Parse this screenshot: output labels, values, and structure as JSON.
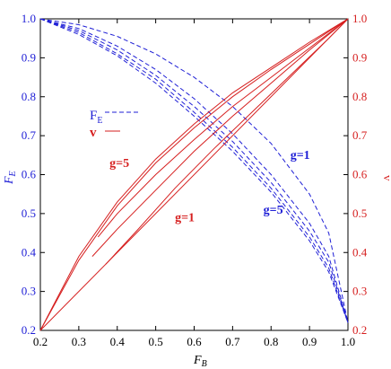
{
  "chart_data": {
    "type": "line",
    "xlabel": "F",
    "xlabel_sub": "B",
    "ylabel_left": "F",
    "ylabel_left_sub": "E",
    "ylabel_right": "v",
    "xlim": [
      0.2,
      1.0
    ],
    "ylim": [
      0.2,
      1.0
    ],
    "x_ticks": [
      "0.2",
      "0.3",
      "0.4",
      "0.5",
      "0.6",
      "0.7",
      "0.8",
      "0.9",
      "1.0"
    ],
    "y_ticks": [
      "0.2",
      "0.3",
      "0.4",
      "0.5",
      "0.6",
      "0.7",
      "0.8",
      "0.9",
      "1.0"
    ],
    "colors": {
      "fe": "#1f1fd6",
      "v": "#d61f1f",
      "axis": "#000000"
    },
    "legend": [
      {
        "label": "F",
        "sub": "E",
        "style": "dashed",
        "color": "#1f1fd6"
      },
      {
        "label": "v",
        "sub": "",
        "style": "solid",
        "color": "#d61f1f"
      }
    ],
    "annotations": [
      {
        "text": "g=5",
        "x": 0.38,
        "y": 0.62,
        "color": "#d61f1f"
      },
      {
        "text": "g=1",
        "x": 0.55,
        "y": 0.48,
        "color": "#d61f1f"
      },
      {
        "text": "g=1",
        "x": 0.85,
        "y": 0.64,
        "color": "#1f1fd6"
      },
      {
        "text": "g=5",
        "x": 0.78,
        "y": 0.5,
        "color": "#1f1fd6"
      }
    ],
    "series": [
      {
        "group": "FE",
        "style": "dashed",
        "x": [
          0.2,
          0.3,
          0.4,
          0.5,
          0.6,
          0.7,
          0.8,
          0.9,
          0.95,
          1.0
        ],
        "y": [
          1.0,
          0.985,
          0.955,
          0.91,
          0.85,
          0.775,
          0.68,
          0.55,
          0.45,
          0.22
        ]
      },
      {
        "group": "FE",
        "style": "dashed",
        "x": [
          0.2,
          0.3,
          0.4,
          0.5,
          0.6,
          0.7,
          0.8,
          0.9,
          0.95,
          1.0
        ],
        "y": [
          1.0,
          0.975,
          0.93,
          0.87,
          0.795,
          0.705,
          0.6,
          0.475,
          0.39,
          0.22
        ]
      },
      {
        "group": "FE",
        "style": "dashed",
        "x": [
          0.2,
          0.3,
          0.4,
          0.5,
          0.6,
          0.7,
          0.8,
          0.9,
          0.95,
          1.0
        ],
        "y": [
          1.0,
          0.97,
          0.92,
          0.855,
          0.775,
          0.685,
          0.58,
          0.455,
          0.375,
          0.22
        ]
      },
      {
        "group": "FE",
        "style": "dashed",
        "x": [
          0.2,
          0.3,
          0.4,
          0.5,
          0.6,
          0.7,
          0.8,
          0.9,
          0.95,
          1.0
        ],
        "y": [
          1.0,
          0.965,
          0.91,
          0.845,
          0.76,
          0.67,
          0.565,
          0.44,
          0.36,
          0.22
        ]
      },
      {
        "group": "FE",
        "style": "dashed",
        "x": [
          0.2,
          0.3,
          0.4,
          0.5,
          0.6,
          0.7,
          0.8,
          0.9,
          0.95,
          1.0
        ],
        "y": [
          1.0,
          0.96,
          0.905,
          0.835,
          0.75,
          0.66,
          0.555,
          0.43,
          0.35,
          0.22
        ]
      },
      {
        "group": "v",
        "style": "solid",
        "x": [
          0.2,
          1.0
        ],
        "y": [
          0.2,
          1.0
        ]
      },
      {
        "group": "v",
        "style": "solid",
        "x": [
          0.2,
          0.3,
          0.4,
          0.5,
          0.6,
          0.7,
          0.8,
          0.9,
          1.0
        ],
        "y": [
          0.2,
          0.38,
          0.52,
          0.63,
          0.72,
          0.8,
          0.87,
          0.935,
          1.0
        ]
      },
      {
        "group": "v",
        "style": "solid",
        "x": [
          0.2,
          0.3,
          0.4,
          0.5,
          0.6,
          0.7,
          0.8,
          0.9,
          1.0
        ],
        "y": [
          0.2,
          0.39,
          0.53,
          0.64,
          0.73,
          0.81,
          0.875,
          0.94,
          1.0
        ]
      },
      {
        "group": "v",
        "style": "solid",
        "x": [
          0.35,
          0.4,
          0.5,
          0.6,
          0.7,
          0.8,
          0.9,
          1.0
        ],
        "y": [
          0.44,
          0.5,
          0.6,
          0.69,
          0.775,
          0.85,
          0.925,
          1.0
        ]
      },
      {
        "group": "v",
        "style": "solid",
        "x": [
          0.335,
          0.4,
          0.5,
          0.6,
          0.7,
          0.8,
          0.9,
          1.0
        ],
        "y": [
          0.39,
          0.46,
          0.56,
          0.66,
          0.75,
          0.835,
          0.92,
          1.0
        ]
      },
      {
        "group": "v",
        "style": "solid",
        "x": [
          0.37,
          0.45,
          0.55,
          0.65,
          0.75,
          0.85,
          0.95,
          1.0
        ],
        "y": [
          0.37,
          0.455,
          0.565,
          0.665,
          0.76,
          0.855,
          0.95,
          1.0
        ]
      }
    ]
  }
}
